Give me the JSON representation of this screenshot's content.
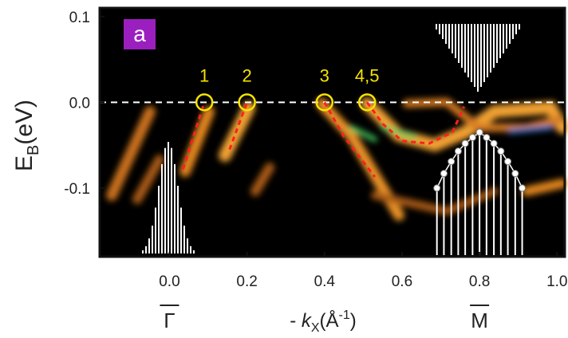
{
  "chart_data": {
    "type": "band-map",
    "panel_label": "a",
    "ylabel": {
      "main": "E",
      "sub": "B",
      "unit": "(eV)"
    },
    "xlabel": {
      "prefix": "- ",
      "main": "k",
      "sub": "X",
      "unit_open": "(Å",
      "unit_sup": "-1",
      "unit_close": ")"
    },
    "xlim": [
      -0.18,
      1.02
    ],
    "ylim": [
      -0.18,
      0.11
    ],
    "xticks": [
      {
        "value": 0,
        "label": "0.0"
      },
      0.2,
      0.4,
      0.6,
      0.8,
      {
        "value": 1,
        "label": "1.0"
      }
    ],
    "yticks": [
      0.1,
      {
        "value": 0,
        "label": "0.0"
      },
      -0.1
    ],
    "reference_line": 0,
    "symmetry_points": [
      {
        "label": "Γ",
        "x": 0
      },
      {
        "label": "M",
        "x": 0.8
      }
    ],
    "crossings": [
      {
        "label": "1",
        "x": 0.09
      },
      {
        "label": "2",
        "x": 0.2
      },
      {
        "label": "3",
        "x": 0.4
      },
      {
        "label": "4,5",
        "x": 0.51
      }
    ],
    "series": [
      {
        "color": "#ff2020",
        "x": [
          0.035,
          0.09
        ],
        "values": [
          -0.078,
          0.0
        ]
      },
      {
        "color": "#ff2020",
        "x": [
          0.155,
          0.2
        ],
        "values": [
          -0.055,
          0.0
        ]
      },
      {
        "color": "#ff2020",
        "x": [
          0.4,
          0.45,
          0.53
        ],
        "values": [
          0.0,
          -0.04,
          -0.087
        ]
      },
      {
        "color": "#ff2020",
        "x": [
          0.51,
          0.55,
          0.6,
          0.67,
          0.73,
          0.76
        ],
        "values": [
          0.0,
          -0.025,
          -0.045,
          -0.048,
          -0.035,
          -0.005
        ]
      }
    ],
    "circles": {
      "color": "#ffffff",
      "x": [
        0.69,
        0.708,
        0.727,
        0.745,
        0.763,
        0.782,
        0.8,
        0.818,
        0.837,
        0.855,
        0.873,
        0.892,
        0.91
      ],
      "values": [
        -0.1,
        -0.083,
        -0.069,
        -0.057,
        -0.048,
        -0.041,
        -0.035,
        -0.041,
        -0.048,
        -0.057,
        -0.069,
        -0.083,
        -0.1
      ]
    }
  }
}
